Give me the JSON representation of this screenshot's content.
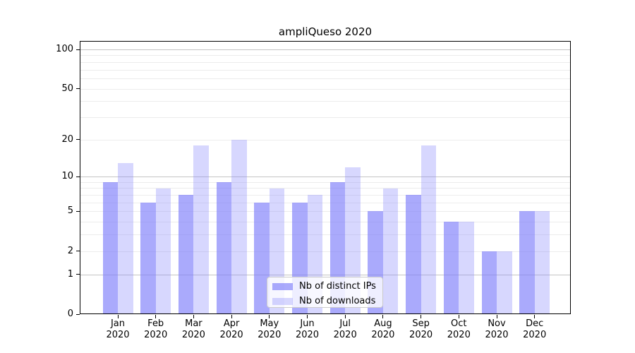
{
  "chart_data": {
    "type": "bar",
    "title": "ampliQueso 2020",
    "x": {
      "months": [
        "Jan",
        "Feb",
        "Mar",
        "Apr",
        "May",
        "Jun",
        "Jul",
        "Aug",
        "Sep",
        "Oct",
        "Nov",
        "Dec"
      ],
      "year": "2020"
    },
    "series": [
      {
        "name": "Nb of distinct IPs",
        "color": "#7c7cfb",
        "alpha": 0.65,
        "values": [
          9,
          6,
          7,
          9,
          6,
          6,
          9,
          5,
          7,
          4,
          2,
          5
        ]
      },
      {
        "name": "Nb of downloads",
        "color": "#7c7cfb",
        "alpha": 0.3,
        "values": [
          13,
          8,
          18,
          20,
          8,
          7,
          12,
          8,
          18,
          4,
          2,
          5
        ]
      }
    ],
    "yscale": "log1p",
    "ylim": [
      0,
      116
    ],
    "yticks": [
      0,
      1,
      2,
      5,
      10,
      20,
      50,
      100
    ],
    "grid": {
      "major_values": [
        1,
        10,
        100
      ],
      "minor_values": [
        2,
        3,
        4,
        5,
        6,
        7,
        8,
        9,
        20,
        30,
        40,
        50,
        60,
        70,
        80,
        90
      ],
      "major_color": "#c4c4c4",
      "minor_color": "#ececec"
    },
    "legend": {
      "position": "lower center"
    }
  }
}
